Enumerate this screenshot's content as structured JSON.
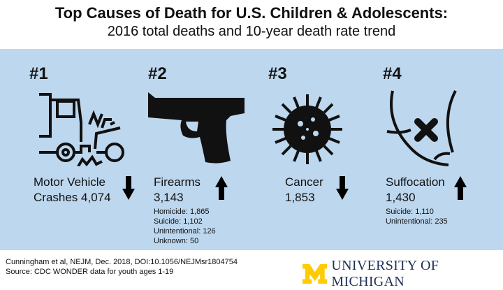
{
  "header": {
    "title": "Top Causes of Death for U.S. Children & Adolescents:",
    "subtitle": "2016 total deaths and 10-year death rate trend"
  },
  "causes": [
    {
      "rank": "#1",
      "icon": "car-crash-icon",
      "name": "Motor Vehicle",
      "name2": "Crashes 4,074",
      "trend": "down"
    },
    {
      "rank": "#2",
      "icon": "handgun-icon",
      "name": "Firearms",
      "total": "3,143",
      "trend": "up",
      "details": [
        "Homicide: 1,865",
        "Suicide: 1,102",
        "Unintentional:  126",
        "Unknown:  50"
      ]
    },
    {
      "rank": "#3",
      "icon": "cancer-cell-icon",
      "name": "Cancer",
      "total": "1,853",
      "trend": "down"
    },
    {
      "rank": "#4",
      "icon": "suffocation-icon",
      "name": "Suffocation",
      "total": "1,430",
      "trend": "up",
      "details": [
        "Suicide: 1,110",
        "Unintentional: 235"
      ]
    }
  ],
  "footer": {
    "citation": "Cunningham  et al, NEJM,  Dec. 2018, DOI:10.1056/NEJMsr1804754",
    "source": "Source: CDC WONDER data for youth ages 1-19",
    "logo_text": "UNIVERSITY OF MICHIGAN",
    "logo_letter": "M",
    "logo_color": "#ffcb05"
  },
  "colors": {
    "panel": "#bdd7ee"
  }
}
